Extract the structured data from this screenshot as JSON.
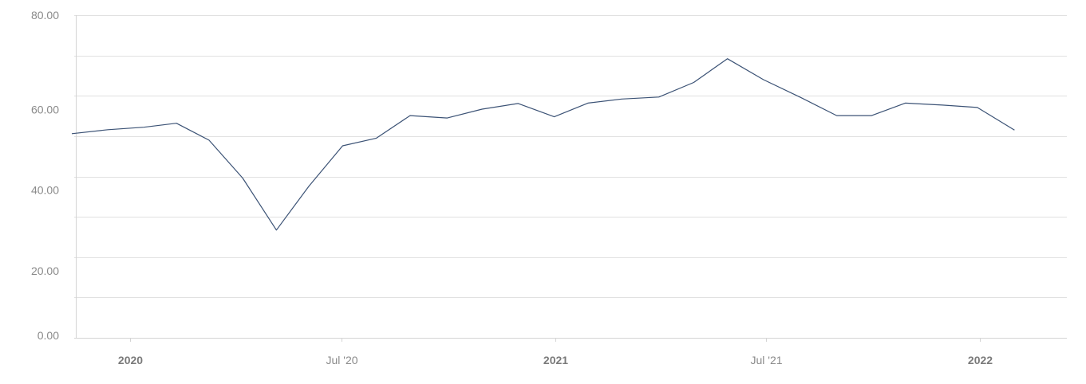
{
  "chart_data": {
    "type": "line",
    "title": "",
    "xlabel": "",
    "ylabel": "",
    "ylim": [
      0,
      80
    ],
    "yticks": [
      {
        "value": 0,
        "label": "0.00"
      },
      {
        "value": 20,
        "label": "20.00"
      },
      {
        "value": 40,
        "label": "40.00"
      },
      {
        "value": 60,
        "label": "60.00"
      },
      {
        "value": 80,
        "label": "80.00"
      }
    ],
    "xticks": [
      {
        "date": "2020-01-01",
        "label": "2020",
        "major": true
      },
      {
        "date": "2020-07-01",
        "label": "Jul '20",
        "major": false
      },
      {
        "date": "2021-01-01",
        "label": "2021",
        "major": true
      },
      {
        "date": "2021-07-01",
        "label": "Jul '21",
        "major": false
      },
      {
        "date": "2022-01-01",
        "label": "2022",
        "major": true
      }
    ],
    "xlim": [
      "2019-11-12",
      "2022-03-17"
    ],
    "grid": true,
    "legend": "none",
    "series": [
      {
        "color": "#3b5275",
        "points": [
          [
            "2019-11-12",
            50.6
          ],
          [
            "2019-12-13",
            51.6
          ],
          [
            "2020-01-13",
            52.2
          ],
          [
            "2020-02-10",
            53.2
          ],
          [
            "2020-03-09",
            49.0
          ],
          [
            "2020-04-07",
            39.6
          ],
          [
            "2020-05-06",
            26.7
          ],
          [
            "2020-06-03",
            37.6
          ],
          [
            "2020-07-02",
            47.6
          ],
          [
            "2020-07-31",
            49.5
          ],
          [
            "2020-08-29",
            55.1
          ],
          [
            "2020-09-30",
            54.5
          ],
          [
            "2020-10-30",
            56.7
          ],
          [
            "2020-11-30",
            58.1
          ],
          [
            "2020-12-31",
            54.8
          ],
          [
            "2021-01-29",
            58.2
          ],
          [
            "2021-02-27",
            59.2
          ],
          [
            "2021-03-31",
            59.7
          ],
          [
            "2021-04-30",
            63.3
          ],
          [
            "2021-05-29",
            69.2
          ],
          [
            "2021-06-29",
            64.0
          ],
          [
            "2021-07-31",
            59.6
          ],
          [
            "2021-08-31",
            55.1
          ],
          [
            "2021-09-30",
            55.1
          ],
          [
            "2021-10-29",
            58.2
          ],
          [
            "2021-11-30",
            57.7
          ],
          [
            "2021-12-30",
            57.1
          ],
          [
            "2022-01-31",
            51.5
          ]
        ]
      }
    ]
  }
}
